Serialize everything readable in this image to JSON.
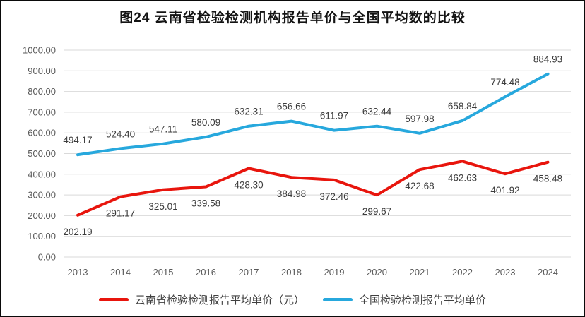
{
  "title": "图24 云南省检验检测机构报告单价与全国平均数的比较",
  "colors": {
    "frame_border": "#0a0a0a",
    "background": "#ffffff",
    "grid": "#d9d9d9",
    "tick_label": "#595959",
    "data_label": "#3b3b3b",
    "yunnan_red": "#e8150d",
    "national_blue": "#27a8dd"
  },
  "chart_data": {
    "type": "line",
    "title": "图24 云南省检验检测机构报告单价与全国平均数的比较",
    "categories": [
      "2013",
      "2014",
      "2015",
      "2016",
      "2017",
      "2018",
      "2019",
      "2020",
      "2021",
      "2022",
      "2023",
      "2024"
    ],
    "series": [
      {
        "name": "云南省检验检测报告平均单价（元）",
        "color": "#e8150d",
        "label_position": "below",
        "values": [
          202.19,
          291.17,
          325.01,
          339.58,
          428.3,
          384.98,
          372.46,
          299.67,
          422.68,
          462.63,
          401.92,
          458.48
        ]
      },
      {
        "name": "全国检验检测报告平均单价",
        "color": "#27a8dd",
        "label_position": "above",
        "values": [
          494.17,
          524.4,
          547.11,
          580.09,
          632.31,
          656.66,
          611.97,
          632.44,
          597.98,
          658.84,
          774.48,
          884.93
        ]
      }
    ],
    "ylim": [
      0,
      1000
    ],
    "y_tick_step": 100,
    "y_tick_format": "2dp",
    "value_label_format": "2dp",
    "grid": "horizontal",
    "legend_position": "bottom",
    "xlabel": "",
    "ylabel": ""
  }
}
